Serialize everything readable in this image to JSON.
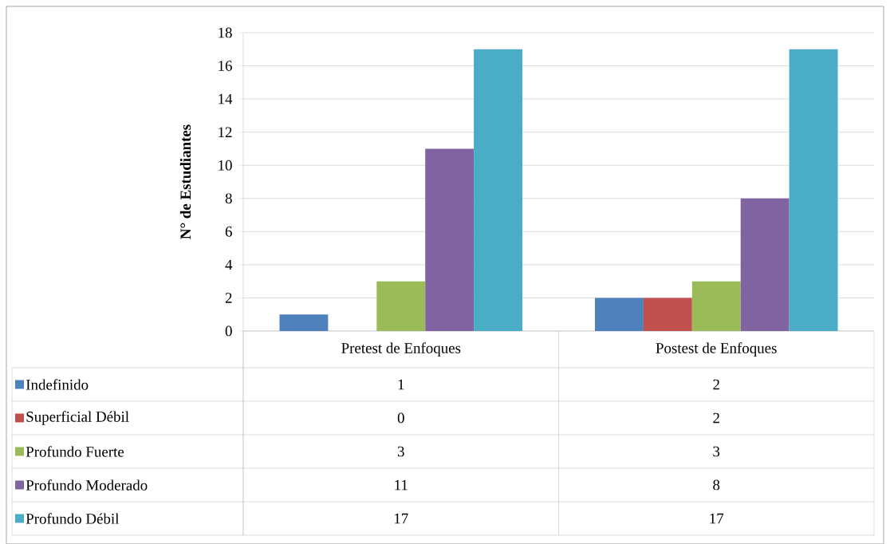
{
  "chart_data": {
    "type": "bar",
    "ylabel": "N° de Estudiantes",
    "categories": [
      "Pretest de Enfoques",
      "Postest de Enfoques"
    ],
    "series": [
      {
        "name": "Indefinido",
        "color": "#4f81bd",
        "values": [
          1,
          2
        ]
      },
      {
        "name": "Superficial Débil",
        "color": "#c0504d",
        "values": [
          0,
          2
        ]
      },
      {
        "name": "Profundo Fuerte",
        "color": "#9bbb59",
        "values": [
          3,
          3
        ]
      },
      {
        "name": "Profundo Moderado",
        "color": "#8064a2",
        "values": [
          11,
          8
        ]
      },
      {
        "name": "Profundo Débil",
        "color": "#4bacc6",
        "values": [
          17,
          17
        ]
      }
    ],
    "ylim": [
      0,
      18
    ],
    "yticks": [
      0,
      2,
      4,
      6,
      8,
      10,
      12,
      14,
      16,
      18
    ],
    "grid": "y",
    "legend": "bottom",
    "data_labels": true
  }
}
